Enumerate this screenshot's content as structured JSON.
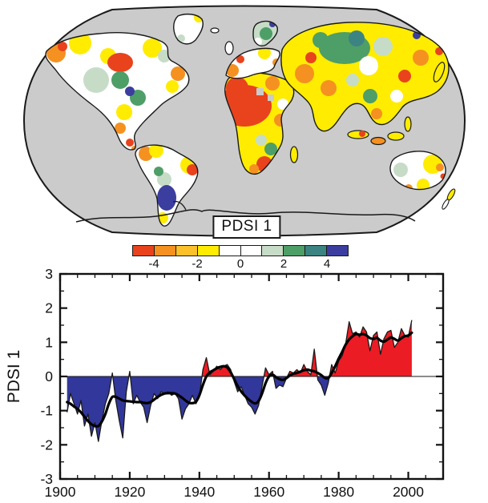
{
  "figure": {
    "map": {
      "label": "PDSI 1",
      "ocean_color": "#cbcbcb",
      "coast_color": "#1a1a1a",
      "colorbar": {
        "min": -5,
        "max": 5,
        "tick_values": [
          -4,
          -2,
          0,
          2,
          4
        ],
        "tick_labels": [
          "-4",
          "-2",
          "0",
          "2",
          "4"
        ],
        "segment_colors": [
          "#e8431d",
          "#f59120",
          "#fbc02a",
          "#ffec00",
          "#ffffff",
          "#ffffff",
          "#c7dcc7",
          "#4e9e68",
          "#3c8482",
          "#3b3e9e"
        ]
      }
    },
    "chart_data": {
      "type": "area",
      "title": "",
      "xlabel": "",
      "ylabel": "PDSI 1",
      "xlim": [
        1900,
        2010
      ],
      "ylim": [
        -3,
        3
      ],
      "x_major_ticks": [
        1900,
        1920,
        1940,
        1960,
        1980,
        2000
      ],
      "x_minor_step": 5,
      "y_major_ticks": [
        -3,
        -2,
        -1,
        0,
        1,
        2,
        3
      ],
      "y_minor_step": 0.5,
      "grid": false,
      "legend": "none",
      "positive_color": "#ec1c24",
      "negative_color": "#32379b",
      "line_color": "#1a1a1a",
      "smoothed_color": "#000000",
      "zero_line": 0,
      "years": [
        1902,
        1903,
        1904,
        1905,
        1906,
        1907,
        1908,
        1909,
        1910,
        1911,
        1912,
        1913,
        1914,
        1915,
        1916,
        1917,
        1918,
        1919,
        1920,
        1921,
        1922,
        1923,
        1924,
        1925,
        1926,
        1927,
        1928,
        1929,
        1930,
        1931,
        1932,
        1933,
        1934,
        1935,
        1936,
        1937,
        1938,
        1939,
        1940,
        1941,
        1942,
        1943,
        1944,
        1945,
        1946,
        1947,
        1948,
        1949,
        1950,
        1951,
        1952,
        1953,
        1954,
        1955,
        1956,
        1957,
        1958,
        1959,
        1960,
        1961,
        1962,
        1963,
        1964,
        1965,
        1966,
        1967,
        1968,
        1969,
        1970,
        1971,
        1972,
        1973,
        1974,
        1975,
        1976,
        1977,
        1978,
        1979,
        1980,
        1981,
        1982,
        1983,
        1984,
        1985,
        1986,
        1987,
        1988,
        1989,
        1990,
        1991,
        1992,
        1993,
        1994,
        1995,
        1996,
        1997,
        1998,
        1999,
        2000,
        2001
      ],
      "values": [
        -1.05,
        -0.5,
        -0.8,
        -1.1,
        -0.7,
        -1.45,
        -1.1,
        -1.75,
        -1.35,
        -1.9,
        -1.3,
        -0.8,
        -0.5,
        0.1,
        -0.7,
        -1.3,
        -1.8,
        -0.45,
        0.15,
        -0.8,
        -0.55,
        -0.75,
        -0.9,
        -1.35,
        -0.85,
        -0.5,
        -0.65,
        -0.45,
        -0.5,
        -0.45,
        -0.55,
        -0.5,
        -0.65,
        -1.25,
        -0.95,
        -0.8,
        -0.55,
        -0.8,
        -0.6,
        0.2,
        0.55,
        0.05,
        0.15,
        0.3,
        0.2,
        0.3,
        0.35,
        0.2,
        -0.15,
        -0.45,
        -0.3,
        -0.55,
        -0.8,
        -0.9,
        -1.1,
        -0.85,
        -0.3,
        0.25,
        0.05,
        0.15,
        -0.35,
        -0.25,
        -0.3,
        -0.05,
        0.15,
        0.1,
        0.2,
        0.1,
        0.35,
        0.15,
        0.05,
        0.8,
        -0.1,
        -0.25,
        -0.55,
        -0.2,
        0.35,
        0.1,
        0.45,
        0.6,
        0.95,
        1.6,
        1.25,
        1.3,
        1.15,
        1.45,
        1.3,
        0.75,
        1.2,
        1.3,
        0.65,
        1.1,
        1.3,
        1.35,
        0.85,
        1.0,
        1.4,
        1.2,
        1.15,
        1.65
      ],
      "smoothed": [
        -0.75,
        -0.8,
        -0.88,
        -0.95,
        -1.05,
        -1.18,
        -1.3,
        -1.4,
        -1.45,
        -1.45,
        -1.32,
        -1.1,
        -0.8,
        -0.6,
        -0.6,
        -0.65,
        -0.7,
        -0.72,
        -0.73,
        -0.74,
        -0.75,
        -0.75,
        -0.77,
        -0.78,
        -0.75,
        -0.68,
        -0.6,
        -0.54,
        -0.5,
        -0.49,
        -0.49,
        -0.5,
        -0.55,
        -0.62,
        -0.7,
        -0.77,
        -0.78,
        -0.74,
        -0.55,
        -0.25,
        0.0,
        0.12,
        0.18,
        0.24,
        0.28,
        0.3,
        0.26,
        0.12,
        -0.08,
        -0.28,
        -0.44,
        -0.56,
        -0.66,
        -0.74,
        -0.79,
        -0.72,
        -0.5,
        -0.2,
        0.0,
        0.05,
        -0.02,
        -0.08,
        -0.1,
        -0.05,
        0.03,
        0.08,
        0.1,
        0.14,
        0.18,
        0.2,
        0.17,
        0.15,
        0.1,
        0.04,
        -0.04,
        -0.05,
        0.1,
        0.3,
        0.52,
        0.72,
        0.93,
        1.08,
        1.18,
        1.24,
        1.22,
        1.24,
        1.2,
        1.12,
        1.1,
        1.13,
        1.05,
        1.02,
        1.08,
        1.14,
        1.1,
        1.05,
        1.12,
        1.18,
        1.2,
        1.28
      ]
    }
  }
}
